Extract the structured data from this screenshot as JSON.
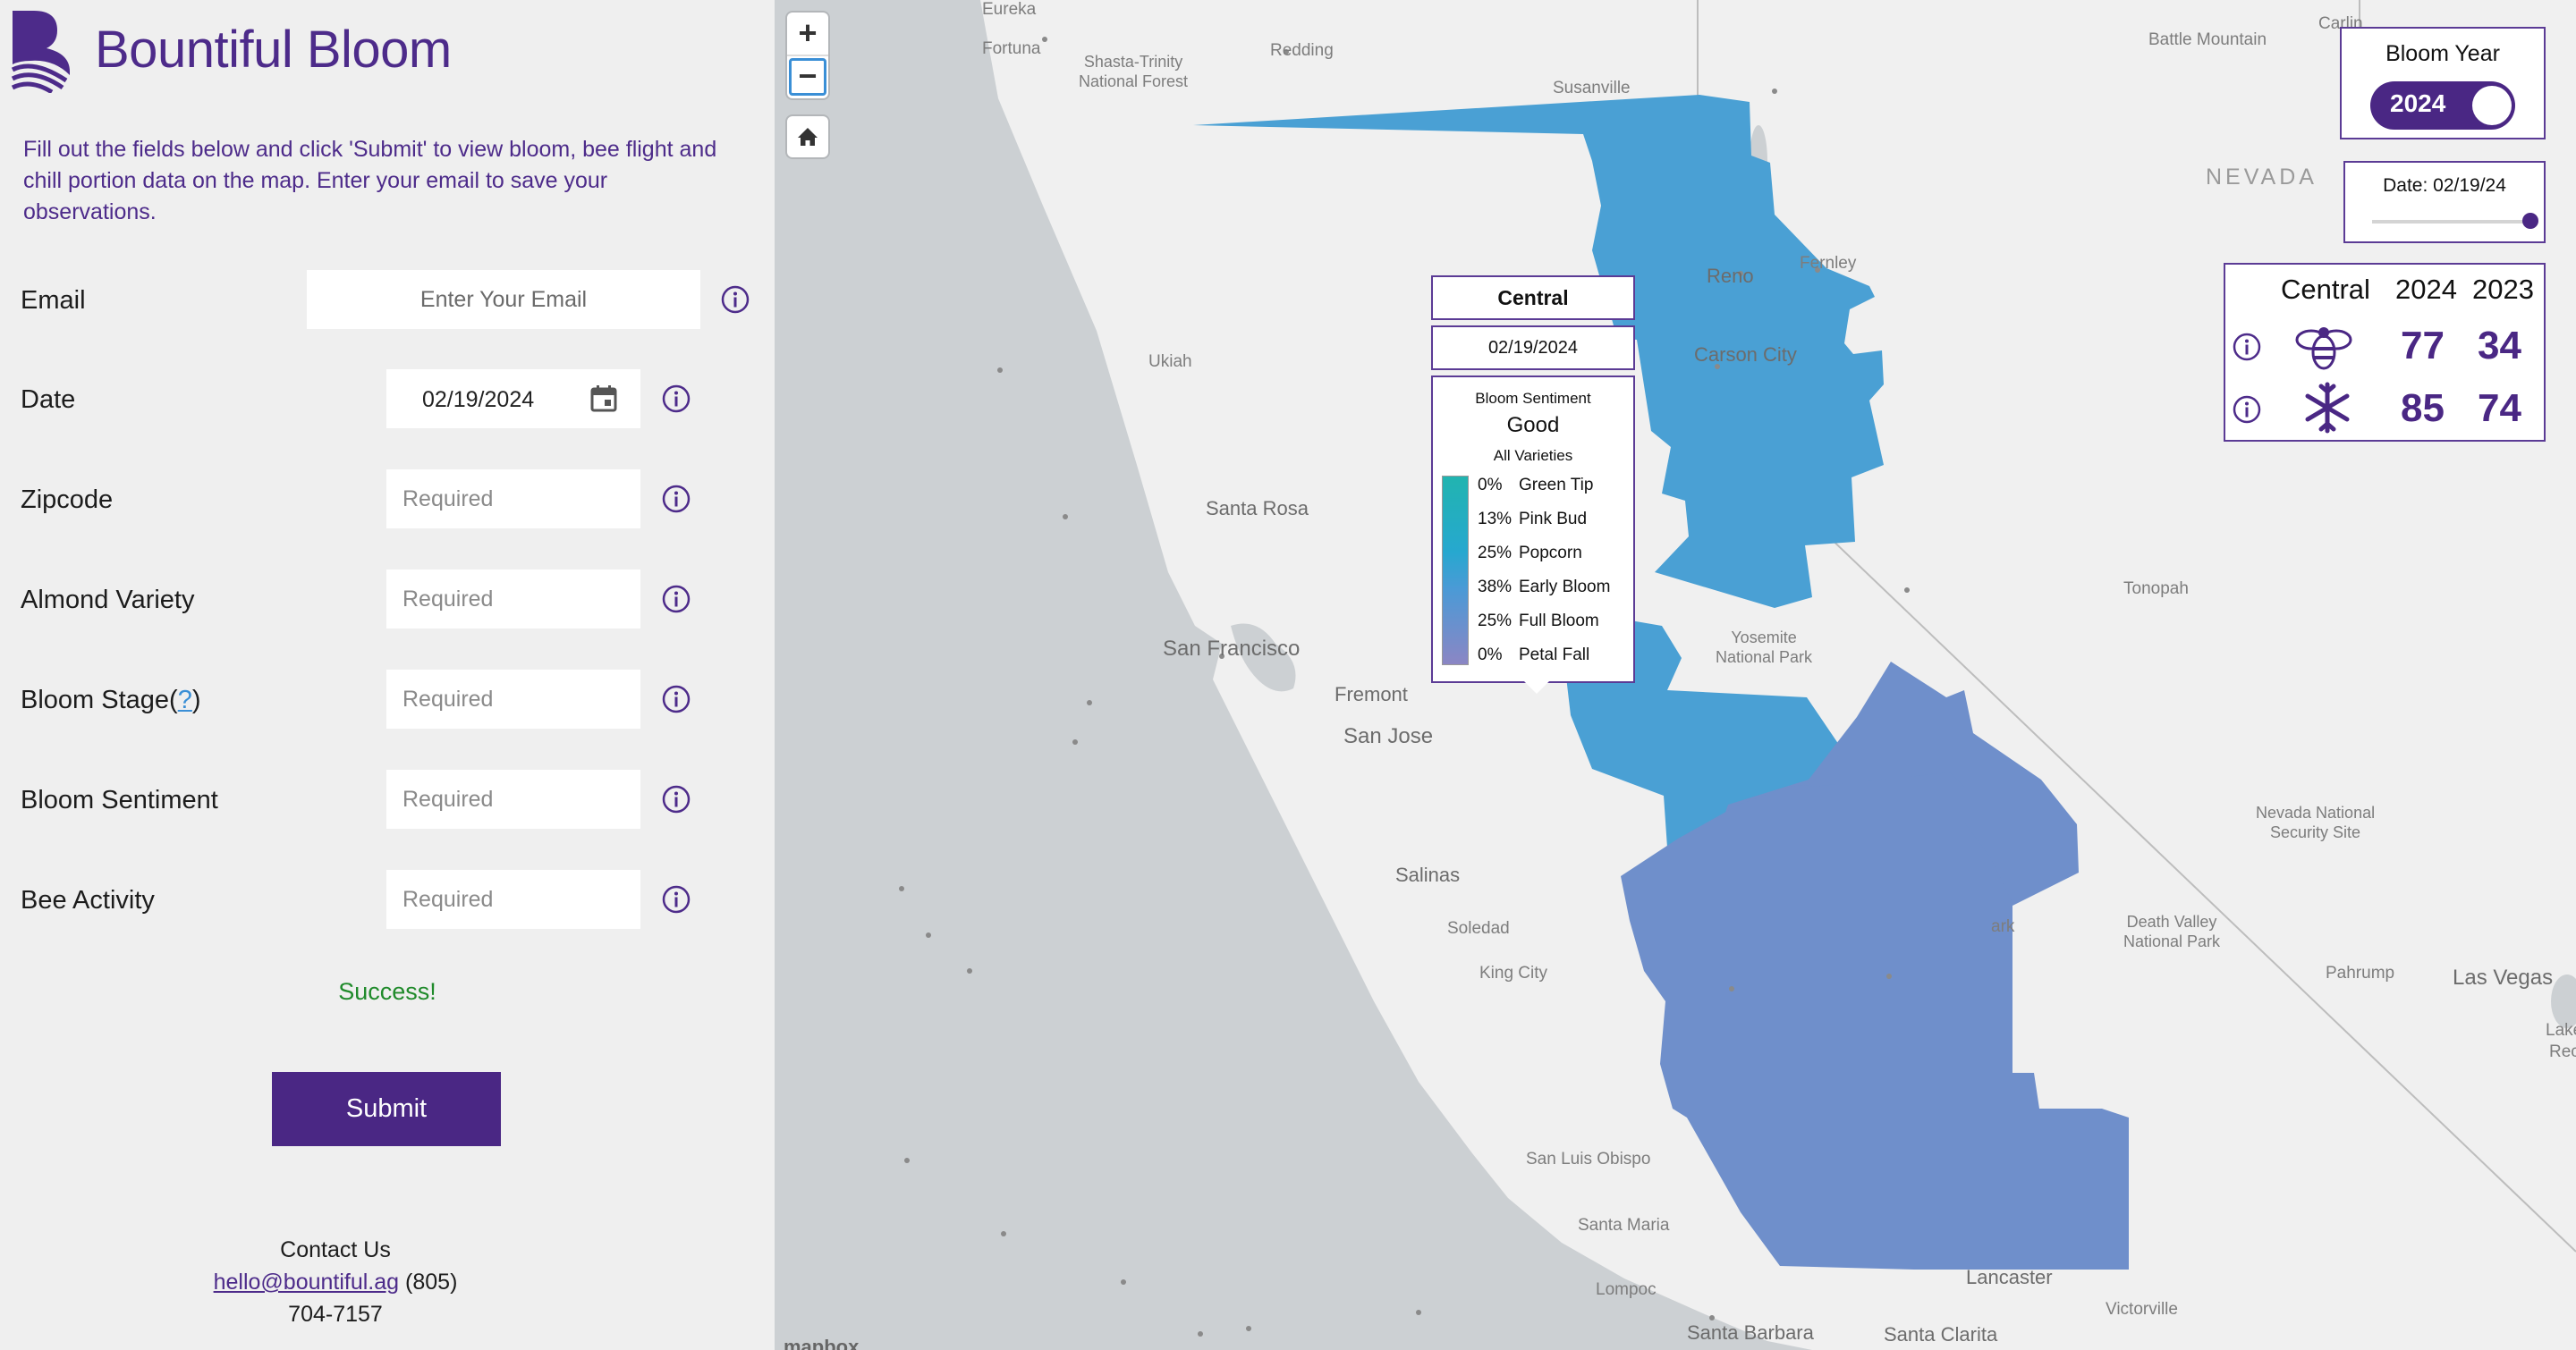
{
  "brand": {
    "name": "Bountiful Bloom",
    "accent": "#4a2784"
  },
  "intro": "Fill out the fields below and click 'Submit' to view bloom, bee flight and chill portion data on the map. Enter your email to save your observations.",
  "form": {
    "email": {
      "label": "Email",
      "placeholder": "Enter Your Email"
    },
    "date": {
      "label": "Date",
      "value": "02/19/2024"
    },
    "zipcode": {
      "label": "Zipcode",
      "placeholder": "Required"
    },
    "variety": {
      "label": "Almond Variety",
      "placeholder": "Required"
    },
    "stage": {
      "label_prefix": "Bloom Stage(",
      "label_link": "?",
      "label_suffix": ")",
      "placeholder": "Required"
    },
    "sentiment": {
      "label": "Bloom Sentiment",
      "placeholder": "Required"
    },
    "bee": {
      "label": "Bee Activity",
      "placeholder": "Required"
    },
    "success": "Success!",
    "submit": "Submit"
  },
  "contact": {
    "title": "Contact Us",
    "email": "hello@bountiful.ag",
    "phone_a": "(805)",
    "phone_b": "704-7157"
  },
  "map": {
    "controls": {
      "zoom_in": "+",
      "zoom_out": "−"
    },
    "places": {
      "eureka": "Eureka",
      "fortuna": "Fortuna",
      "redding": "Redding",
      "shasta": "Shasta-Trinity",
      "shasta2": "National Forest",
      "susanville": "Susanville",
      "battle": "Battle Mountain",
      "carlin": "Carlin",
      "nevada": "NEVADA",
      "reno": "Reno",
      "fernley": "Fernley",
      "carson": "Carson City",
      "ukiah": "Ukiah",
      "santarosa": "Santa Rosa",
      "sf": "San Francisco",
      "fremont": "Fremont",
      "sanjose": "San Jose",
      "tonopah": "Tonopah",
      "yosemite": "Yosemite",
      "yosemite2": "National Park",
      "salinas": "Salinas",
      "soledad": "Soledad",
      "kingcity": "King City",
      "nnss": "Nevada National",
      "nnss2": "Security Site",
      "dv": "Death Valley",
      "dv2": "National Park",
      "pahrump": "Pahrump",
      "lasvegas": "Las Vegas",
      "slo": "San Luis Obispo",
      "santamaria": "Santa Maria",
      "lompoc": "Lompoc",
      "lancaster": "Lancaster",
      "victorville": "Victorville",
      "santabarbara": "Santa Barbara",
      "santaclarita": "Santa Clarita",
      "ark": "ark",
      "lake": "Lake",
      "rec": "Rec"
    },
    "attribution": "mapbox",
    "region_colors": {
      "north": "#4aa0d4",
      "central": "#4aa0d4",
      "south": "#6f8fcb"
    }
  },
  "popup": {
    "region": "Central",
    "date": "02/19/2024",
    "sentiment_label": "Bloom Sentiment",
    "sentiment_value": "Good",
    "varieties": "All Varieties",
    "stages": [
      {
        "pct": "0%",
        "name": "Green Tip"
      },
      {
        "pct": "13%",
        "name": "Pink Bud"
      },
      {
        "pct": "25%",
        "name": "Popcorn"
      },
      {
        "pct": "38%",
        "name": "Early Bloom"
      },
      {
        "pct": "25%",
        "name": "Full Bloom"
      },
      {
        "pct": "0%",
        "name": "Petal Fall"
      }
    ]
  },
  "year_card": {
    "title": "Bloom Year",
    "value": "2024"
  },
  "date_card": {
    "label": "Date: 02/19/24",
    "slider_position": 1.0
  },
  "stats": {
    "region": "Central",
    "year_a": "2024",
    "year_b": "2023",
    "bee": {
      "a": "77",
      "b": "34"
    },
    "chill": {
      "a": "85",
      "b": "74"
    }
  }
}
